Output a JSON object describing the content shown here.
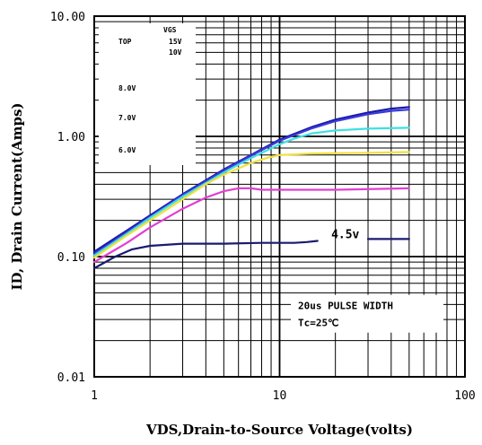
{
  "chart_data": {
    "type": "line",
    "xscale": "log",
    "yscale": "log",
    "xlim": [
      1,
      100
    ],
    "ylim": [
      0.01,
      10
    ],
    "grid": true,
    "xlabel": "VDS,Drain-to-Source Voltage(volts)",
    "ylabel": "ID, Drain Current(Amps)",
    "x_ticks": [
      1,
      10,
      100
    ],
    "x_tick_labels": [
      "1",
      "10",
      "100"
    ],
    "y_ticks": [
      0.01,
      0.1,
      1,
      10
    ],
    "y_tick_labels": [
      "0.01",
      "0.10",
      "1.00",
      "10.00"
    ],
    "legend": {
      "header": "VGS",
      "top_label": "TOP",
      "entries": [
        "15V",
        "10V",
        "8.0V",
        "7.0V",
        "6.0V"
      ],
      "position": "top-left"
    },
    "annotations": {
      "line1": "20us PULSE WIDTH",
      "line2": "Tc=25℃"
    },
    "series": [
      {
        "label": "15V",
        "color": "#1a1aa6",
        "points": [
          [
            1,
            0.11
          ],
          [
            1.5,
            0.165
          ],
          [
            2,
            0.22
          ],
          [
            3,
            0.33
          ],
          [
            5,
            0.53
          ],
          [
            7,
            0.7
          ],
          [
            10,
            0.94
          ],
          [
            15,
            1.2
          ],
          [
            20,
            1.38
          ],
          [
            30,
            1.58
          ],
          [
            40,
            1.7
          ],
          [
            50,
            1.75
          ]
        ]
      },
      {
        "label": "10V",
        "color": "#3a3adc",
        "points": [
          [
            1,
            0.105
          ],
          [
            1.5,
            0.16
          ],
          [
            2,
            0.215
          ],
          [
            3,
            0.325
          ],
          [
            5,
            0.52
          ],
          [
            7,
            0.69
          ],
          [
            10,
            0.92
          ],
          [
            15,
            1.17
          ],
          [
            20,
            1.34
          ],
          [
            30,
            1.53
          ],
          [
            40,
            1.63
          ],
          [
            50,
            1.67
          ]
        ]
      },
      {
        "label": "8.0V",
        "color": "#40e0e0",
        "points": [
          [
            1,
            0.102
          ],
          [
            1.5,
            0.155
          ],
          [
            2,
            0.21
          ],
          [
            3,
            0.315
          ],
          [
            5,
            0.5
          ],
          [
            7,
            0.66
          ],
          [
            10,
            0.86
          ],
          [
            12,
            0.96
          ],
          [
            15,
            1.06
          ],
          [
            20,
            1.12
          ],
          [
            30,
            1.16
          ],
          [
            50,
            1.18
          ]
        ]
      },
      {
        "label": "7.0V",
        "color": "#f0e040",
        "points": [
          [
            1,
            0.098
          ],
          [
            1.5,
            0.15
          ],
          [
            2,
            0.2
          ],
          [
            3,
            0.3
          ],
          [
            4,
            0.4
          ],
          [
            5,
            0.48
          ],
          [
            7,
            0.6
          ],
          [
            8.5,
            0.66
          ],
          [
            10,
            0.7
          ],
          [
            15,
            0.72
          ],
          [
            30,
            0.73
          ],
          [
            50,
            0.74
          ]
        ]
      },
      {
        "label": "6.0V",
        "color": "#e040d0",
        "points": [
          [
            1,
            0.09
          ],
          [
            1.5,
            0.13
          ],
          [
            2,
            0.175
          ],
          [
            3,
            0.25
          ],
          [
            4,
            0.31
          ],
          [
            5,
            0.35
          ],
          [
            6,
            0.37
          ],
          [
            7,
            0.37
          ],
          [
            8,
            0.36
          ],
          [
            10,
            0.36
          ],
          [
            20,
            0.36
          ],
          [
            50,
            0.37
          ]
        ]
      },
      {
        "label": "4.5v",
        "color": "#1a1a70",
        "points": [
          [
            1,
            0.08
          ],
          [
            1.3,
            0.1
          ],
          [
            1.6,
            0.115
          ],
          [
            2,
            0.123
          ],
          [
            3,
            0.128
          ],
          [
            5,
            0.128
          ],
          [
            8,
            0.13
          ],
          [
            12,
            0.13
          ],
          [
            14,
            0.132
          ],
          [
            16,
            0.135
          ]
        ]
      },
      {
        "label": "4.5v-end",
        "color": "#1a1a70",
        "points": [
          [
            30,
            0.14
          ],
          [
            50,
            0.14
          ]
        ]
      }
    ],
    "series_label": "4.5v"
  }
}
